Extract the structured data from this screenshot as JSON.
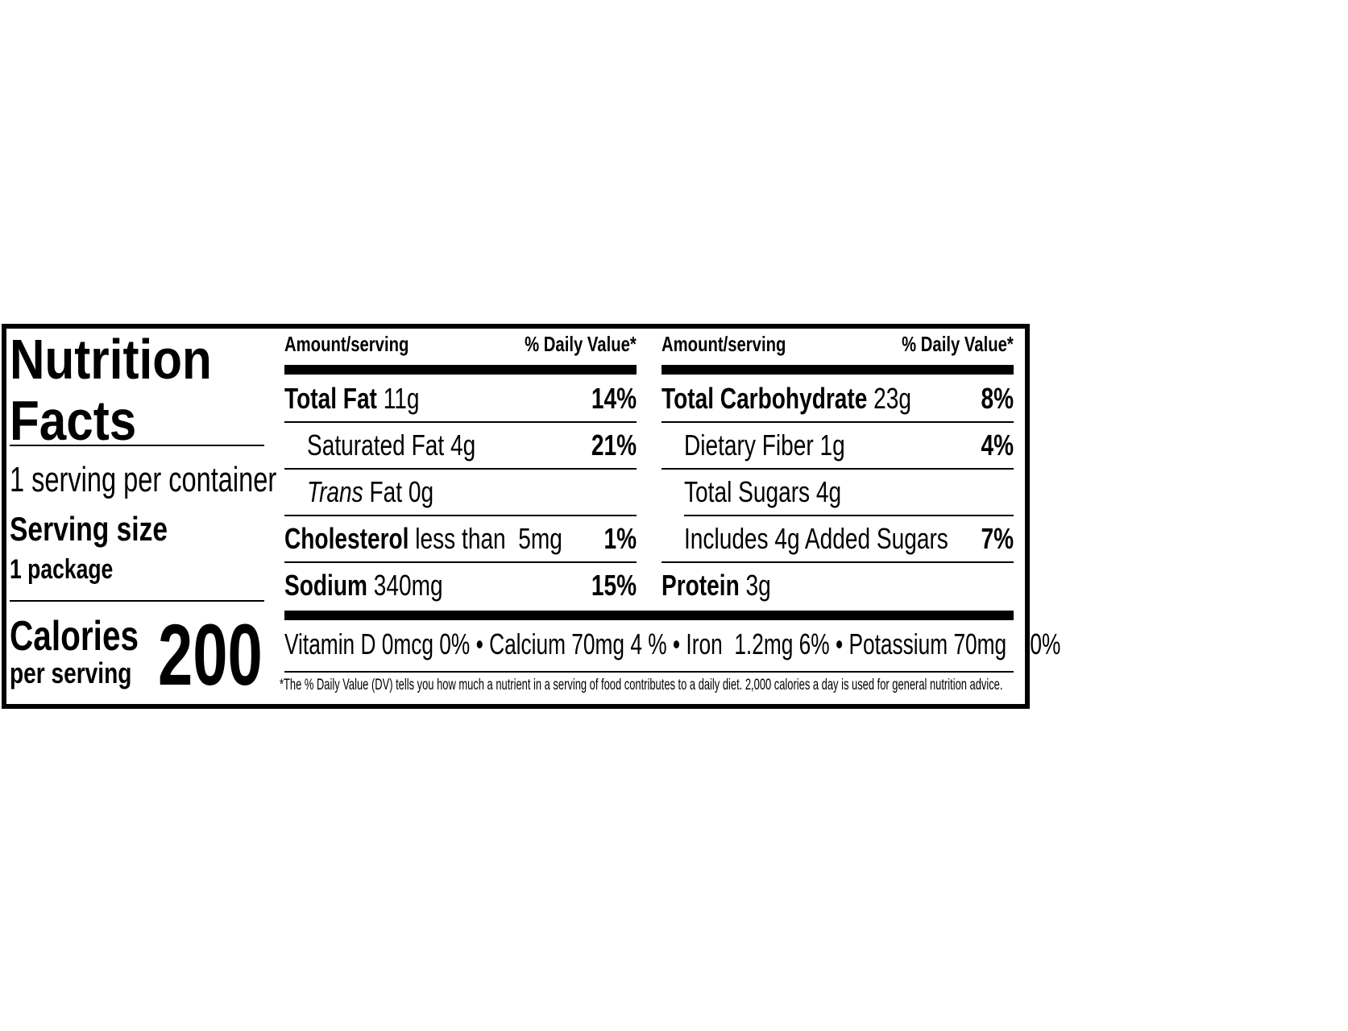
{
  "title": "Nutrition Facts",
  "title_line1": "Nutrition",
  "title_line2": "Facts",
  "servings_per_container": "1 serving per container",
  "serving_size_label": "Serving size",
  "serving_size_value": "1 package",
  "calories_label": "Calories",
  "calories_sub": "per serving",
  "calories_value": "200",
  "column_header": {
    "amount": "Amount/serving",
    "dv": "% Daily Value*"
  },
  "left_rows": [
    {
      "name": "Total Fat",
      "amount": "11g",
      "dv": "14%"
    },
    {
      "name": "Saturated Fat",
      "amount": "4g",
      "dv": "21%"
    },
    {
      "name": "Trans",
      "name_rest": "Fat",
      "amount": "0g",
      "dv": ""
    },
    {
      "name": "Cholesterol",
      "amount": "less than  5mg",
      "dv": "1%"
    },
    {
      "name": "Sodium",
      "amount": "340mg",
      "dv": "15%"
    }
  ],
  "right_rows": [
    {
      "name": "Total Carbohydrate",
      "amount": "23g",
      "dv": "8%"
    },
    {
      "name": "Dietary Fiber",
      "amount": "1g",
      "dv": "4%"
    },
    {
      "name": "Total Sugars",
      "amount": "4g",
      "dv": ""
    },
    {
      "name": "Includes 4g Added Sugars",
      "amount": "",
      "dv": "7%"
    },
    {
      "name": "Protein",
      "amount": "3g",
      "dv": ""
    }
  ],
  "vitamins": "Vitamin D 0mcg 0% • Calcium 70mg 4 % • Iron  1.2mg 6% • Potassium 70mg    0%",
  "footnote": "*The % Daily Value (DV) tells you how much a nutrient in a serving of food contributes to a daily diet. 2,000 calories a day is used for general nutrition advice."
}
